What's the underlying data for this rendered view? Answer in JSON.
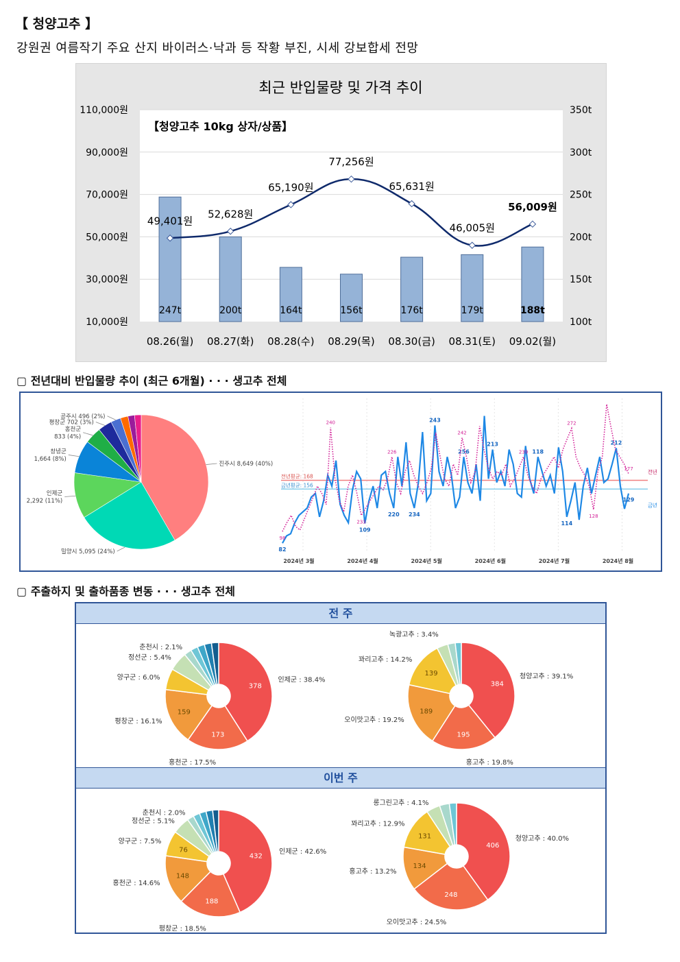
{
  "heading": "【 청양고추 】",
  "subtitle": "강원권 여름작기 주요 산지 바이러스·낙과 등 작황 부진, 시세 강보합세 전망",
  "section2_title": "▢  전년대비 반입물량 추이 (최근 6개월) · · · 생고추 전체",
  "section3_title": "▢  주출하지 및 출하품종 변동 · · · 생고추 전체",
  "band_prev": "전 주",
  "band_this": "이번 주",
  "colors": {
    "bar": "#95b3d7",
    "line": "#0f2a6b",
    "pie_red": "#f0504f",
    "pie_coral": "#f26b4a",
    "pie_orange": "#f19a3c",
    "pie_yellow": "#f3c431",
    "lt_blue": "#1e88e5",
    "ly_pink": "#d21e96"
  },
  "chart_data": [
    {
      "type": "bar+line",
      "title": "최근 반입물량 및 가격 추이",
      "inner_label": "【청양고추 10kg 상자/상품】",
      "categories": [
        "08.26(월)",
        "08.27(화)",
        "08.28(수)",
        "08.29(목)",
        "08.30(금)",
        "08.31(토)",
        "09.02(월)"
      ],
      "bar_series": {
        "name": "반입물량",
        "values": [
          247,
          200,
          164,
          156,
          176,
          179,
          188
        ],
        "labels": [
          "247t",
          "200t",
          "164t",
          "156t",
          "176t",
          "179t",
          "188t"
        ]
      },
      "line_series": {
        "name": "가격",
        "values": [
          49401,
          52628,
          65190,
          77256,
          65631,
          46005,
          56009
        ],
        "labels": [
          "49,401원",
          "52,628원",
          "65,190원",
          "77,256원",
          "65,631원",
          "46,005원",
          "56,009원"
        ]
      },
      "y_left": {
        "ylim": [
          10000,
          110000
        ],
        "ticks": [
          "10,000원",
          "30,000원",
          "50,000원",
          "70,000원",
          "90,000원",
          "110,000원"
        ]
      },
      "y_right": {
        "ylim": [
          100,
          350
        ],
        "ticks": [
          "100t",
          "150t",
          "200t",
          "250t",
          "300t",
          "350t"
        ]
      }
    },
    {
      "type": "pie",
      "slices": [
        {
          "label": "진주시 8,649 (40%)",
          "value": 8649,
          "color": "#ff7f7f"
        },
        {
          "label": "밀양시 5,095 (24%)",
          "value": 5095,
          "color": "#00d9b5"
        },
        {
          "label": "인제군 2,292 (11%)",
          "value": 2292,
          "color": "#5cd65c"
        },
        {
          "label": "창녕군 1,664 (8%)",
          "value": 1664,
          "color": "#0a84d8"
        },
        {
          "label": "홍천군 833 (4%)",
          "value": 833,
          "color": "#1fae46"
        },
        {
          "label": "평창군 702 (3%)",
          "value": 702,
          "color": "#1e2a9c"
        },
        {
          "label": "공주시 496 (2%)",
          "value": 496,
          "color": "#4a6fd1"
        },
        {
          "label": "",
          "value": 380,
          "color": "#ff6a00"
        },
        {
          "label": "",
          "value": 330,
          "color": "#9b1c9b"
        },
        {
          "label": "",
          "value": 330,
          "color": "#e91e8c"
        }
      ]
    },
    {
      "type": "line",
      "x_ticks": [
        "2024년 3월",
        "2024년 4월",
        "2024년 5월",
        "2024년 6월",
        "2024년 7월",
        "2024년 8월"
      ],
      "ylim": [
        70,
        280
      ],
      "ref_lines": [
        {
          "name": "전년평균: 168",
          "value": 168,
          "color": "#f08080"
        },
        {
          "name": "금년평균: 156",
          "value": 156,
          "color": "#87ceeb"
        }
      ],
      "series": [
        {
          "name": "금년",
          "end_label": "금년",
          "peak_labels": [
            "82",
            "109",
            "220",
            "234",
            "243",
            "256",
            "213",
            "118",
            "114",
            "212",
            "129"
          ],
          "values": [
            82,
            92,
            95,
            110,
            120,
            125,
            130,
            145,
            150,
            118,
            140,
            175,
            160,
            195,
            135,
            120,
            110,
            155,
            180,
            170,
            109,
            140,
            160,
            130,
            175,
            180,
            150,
            130,
            200,
            160,
            220,
            150,
            130,
            165,
            234,
            140,
            150,
            243,
            180,
            160,
            200,
            175,
            130,
            145,
            200,
            165,
            150,
            190,
            140,
            256,
            170,
            210,
            165,
            180,
            160,
            210,
            190,
            150,
            145,
            215,
            170,
            150,
            200,
            180,
            160,
            175,
            150,
            213,
            180,
            118,
            140,
            165,
            114,
            160,
            185,
            150,
            175,
            200,
            165,
            170,
            190,
            212,
            160,
            129,
            150
          ]
        },
        {
          "name": "전년",
          "end_label": "전년",
          "peak_labels": [
            "98",
            "240",
            "233",
            "226",
            "242",
            "239",
            "272",
            "128",
            "177"
          ],
          "values": [
            98,
            110,
            120,
            105,
            100,
            115,
            130,
            145,
            160,
            150,
            135,
            240,
            170,
            140,
            125,
            160,
            175,
            150,
            120,
            130,
            140,
            150,
            160,
            155,
            170,
            200,
            165,
            150,
            180,
            195,
            175,
            160,
            150,
            165,
            185,
            233,
            200,
            170,
            160,
            190,
            175,
            226,
            200,
            165,
            180,
            242,
            210,
            185,
            170,
            180,
            175,
            190,
            160,
            170,
            185,
            200,
            175,
            160,
            150,
            170,
            180,
            190,
            200,
            185,
            210,
            225,
            239,
            200,
            185,
            175,
            160,
            128,
            180,
            200,
            272,
            240,
            210,
            200,
            190,
            177
          ]
        }
      ]
    },
    {
      "type": "donut",
      "panel": "전 주 · 산지",
      "slices": [
        {
          "label": "인제군 : 38.4%",
          "value": 378,
          "inside": "378",
          "color": "#f0504f"
        },
        {
          "label": "홍천군 : 17.5%",
          "value": 173,
          "inside": "173",
          "color": "#f26b4a"
        },
        {
          "label": "평창군 : 16.1%",
          "value": 159,
          "inside": "159",
          "color": "#f19a3c"
        },
        {
          "label": "양구군 : 6.0%",
          "value": 59,
          "inside": "",
          "color": "#f3c431"
        },
        {
          "label": "정선군 : 5.4%",
          "value": 53,
          "inside": "",
          "color": "#c5e0b4"
        },
        {
          "label": "춘천시 : 2.1%",
          "value": 21,
          "inside": "",
          "color": "#a8d8cc"
        },
        {
          "label": "",
          "value": 20,
          "inside": "",
          "color": "#6ec6d6"
        },
        {
          "label": "",
          "value": 20,
          "inside": "",
          "color": "#3fa7c9"
        },
        {
          "label": "",
          "value": 20,
          "inside": "",
          "color": "#1f7fb0"
        },
        {
          "label": "",
          "value": 20,
          "inside": "",
          "color": "#135d8f"
        }
      ]
    },
    {
      "type": "donut",
      "panel": "전 주 · 품종",
      "slices": [
        {
          "label": "청양고추 : 39.1%",
          "value": 384,
          "inside": "384",
          "color": "#f0504f"
        },
        {
          "label": "홍고추 : 19.8%",
          "value": 195,
          "inside": "195",
          "color": "#f26b4a"
        },
        {
          "label": "오이맛고추 : 19.2%",
          "value": 189,
          "inside": "189",
          "color": "#f19a3c"
        },
        {
          "label": "꽈리고추 : 14.2%",
          "value": 139,
          "inside": "139",
          "color": "#f3c431"
        },
        {
          "label": "녹광고추 : 3.4%",
          "value": 33,
          "inside": "",
          "color": "#c5e0b4"
        },
        {
          "label": "",
          "value": 22,
          "inside": "",
          "color": "#a8d8cc"
        },
        {
          "label": "",
          "value": 18,
          "inside": "",
          "color": "#6ec6d6"
        }
      ]
    },
    {
      "type": "donut",
      "panel": "이번 주 · 산지",
      "slices": [
        {
          "label": "인제군 : 42.6%",
          "value": 432,
          "inside": "432",
          "color": "#f0504f"
        },
        {
          "label": "평창군 : 18.5%",
          "value": 188,
          "inside": "188",
          "color": "#f26b4a"
        },
        {
          "label": "홍천군 : 14.6%",
          "value": 148,
          "inside": "148",
          "color": "#f19a3c"
        },
        {
          "label": "양구군 : 7.5%",
          "value": 76,
          "inside": "76",
          "color": "#f3c431"
        },
        {
          "label": "정선군 : 5.1%",
          "value": 52,
          "inside": "",
          "color": "#c5e0b4"
        },
        {
          "label": "춘천시 : 2.0%",
          "value": 20,
          "inside": "",
          "color": "#a8d8cc"
        },
        {
          "label": "",
          "value": 20,
          "inside": "",
          "color": "#6ec6d6"
        },
        {
          "label": "",
          "value": 20,
          "inside": "",
          "color": "#3fa7c9"
        },
        {
          "label": "",
          "value": 20,
          "inside": "",
          "color": "#1f7fb0"
        },
        {
          "label": "",
          "value": 18,
          "inside": "",
          "color": "#135d8f"
        }
      ]
    },
    {
      "type": "donut",
      "panel": "이번 주 · 품종",
      "slices": [
        {
          "label": "청양고추 : 40.0%",
          "value": 406,
          "inside": "406",
          "color": "#f0504f"
        },
        {
          "label": "오이맛고추 : 24.5%",
          "value": 248,
          "inside": "248",
          "color": "#f26b4a"
        },
        {
          "label": "홍고추 : 13.2%",
          "value": 134,
          "inside": "134",
          "color": "#f19a3c"
        },
        {
          "label": "꽈리고추 : 12.9%",
          "value": 131,
          "inside": "131",
          "color": "#f3c431"
        },
        {
          "label": "롱그린고추 : 4.1%",
          "value": 42,
          "inside": "",
          "color": "#c5e0b4"
        },
        {
          "label": "",
          "value": 30,
          "inside": "",
          "color": "#a8d8cc"
        },
        {
          "label": "",
          "value": 22,
          "inside": "",
          "color": "#6ec6d6"
        }
      ]
    }
  ]
}
